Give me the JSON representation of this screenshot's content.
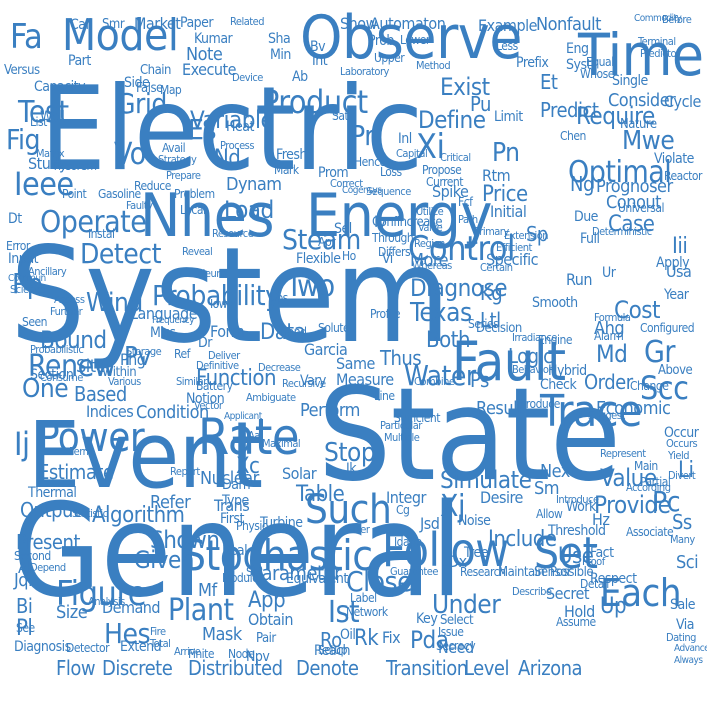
{
  "word_cloud": {
    "palette": {
      "word_color": "#3a7fc1",
      "background": "#ffffff"
    },
    "words": {
      "system": "System",
      "general": "General",
      "electric": "Electric",
      "state": "State",
      "event": "Event",
      "nhes": "Nhes",
      "energy": "Energy",
      "time": "Time",
      "observe": "Observe",
      "model": "Model",
      "fault": "Fault",
      "stochastic": "Stochastic",
      "follow": "Follow",
      "rate": "Rate",
      "power": "Power",
      "control": "Control",
      "trace": "Trace",
      "set": "Set",
      "each": "Each",
      "figure": "Figure",
      "product": "Product",
      "such": "Such",
      "probability": "Probability",
      "operate": "Operate",
      "detect": "Detect",
      "steam": "Steam",
      "test": "Test",
      "ieee": "Ieee",
      "algorithm": "Algorithm",
      "renew": "Renew",
      "optimal": "Optimal",
      "diagnose": "Diagnose",
      "texas": "Texas",
      "water": "Water",
      "plant": "Plant",
      "transition": "Transition",
      "level": "Level",
      "arizona": "Arizona",
      "discrete": "Discrete",
      "distributed": "Distributed",
      "denote": "Denote",
      "flow": "Flow",
      "grid": "Grid",
      "scc": "Scc",
      "simulate": "Simulate",
      "variable": "Variable",
      "require": "Require",
      "define": "Define",
      "exist": "Exist",
      "close": "Close",
      "given": "Given",
      "stop": "Stop",
      "load": "Load",
      "wind": "Wind",
      "two": "Two",
      "data": "Data",
      "function": "Function",
      "parameter": "Parameter",
      "value": "Value",
      "provide": "Provide",
      "under": "Under",
      "shown": "Shown",
      "include": "Include",
      "result": "Result",
      "economic": "Economic",
      "cost": "Cost",
      "price": "Price",
      "predict": "Predict",
      "consider": "Consider",
      "output": "Output",
      "estimate": "Estimate",
      "table": "Table",
      "based": "Based",
      "condition": "Condition",
      "indices": "Indices",
      "solar": "Solar",
      "turbine": "Turbine",
      "nuclear": "Nuclear",
      "logic": "Logic",
      "order": "Order",
      "perform": "Perform",
      "pdf": "Pdf",
      "hes": "Hes",
      "app": "App",
      "ltl": "Ltl",
      "bound": "Bound",
      "one": "One",
      "pp": "Pp",
      "vo": "Vo",
      "es": "Es",
      "fig": "Fig",
      "pr": "Pr",
      "xi": "Xi",
      "pn": "Pn",
      "mwe": "Mwe",
      "conout": "Conout",
      "prognoser": "Prognoser",
      "case": "Case",
      "kg": "Kg",
      "md": "Md",
      "ahg": "Ahg",
      "thus": "Thus",
      "both": "Both",
      "pc": "Pc",
      "ss": "Ss",
      "ij": "Ij",
      "xj": "Xj",
      "sm": "Sm",
      "gr": "Gr",
      "pv": "Pv",
      "phg": "Phg",
      "ng": "Ng",
      "li": "Li",
      "initial": "Initial",
      "nd": "Nd",
      "sp": "Sp",
      "ps": "Ps",
      "next": "Next",
      "note": "Note",
      "execute": "Execute",
      "kumar": "Kumar",
      "show": "Show",
      "automaton": "Automaton",
      "nonfault": "Nonfault",
      "example": "Example",
      "market": "Market",
      "call": "Call",
      "paper": "Paper",
      "smr": "Smr",
      "related": "Related",
      "fa": "Fa",
      "iii": "Iii",
      "year": "Year",
      "et": "Et",
      "rtm": "Rtm",
      "pu": "Pu",
      "heat": "Heat",
      "dynam": "Dynam",
      "spike": "Spike",
      "flexible": "Flexible",
      "sel": "Sel",
      "inl": "Inl",
      "eng": "Eng",
      "syst": "Syst",
      "prefix": "Prefix",
      "simulat": "Simulat",
      "limit": "Limit",
      "measure": "Measure",
      "same": "Same",
      "mask": "Mask",
      "obtain": "Obtain",
      "pda": "Pda",
      "fix": "Fix",
      "need": "Need",
      "reach": "Reach",
      "demand": "Demand",
      "size": "Size",
      "present": "Present",
      "study": "Study",
      "site": "Site",
      "miss": "Miss",
      "ro": "Ro",
      "rk": "Rk",
      "ist": "Ist",
      "trans": "Trans",
      "form": "Form",
      "section": "Section",
      "thermal": "Thermal",
      "refer": "Refer",
      "desire": "Desire",
      "noise": "Noise",
      "tree": "Tree",
      "pl": "Pl",
      "bi": "Bi",
      "ieeexplore": "Ieee",
      "key": "Key",
      "hold": "Hold",
      "secret": "Secret",
      "respect": "Respect",
      "cycle": "Cycle",
      "single": "Single",
      "possible": "Possible",
      "lower": "Lower",
      "upper": "Upper",
      "extend": "Extend",
      "capacity": "Capacity",
      "diagnosis": "Diagnosis",
      "detector": "Detector",
      "dx": "Dx",
      "use": "Use",
      "mf": "Mf",
      "up": "Up",
      "sci": "Sci",
      "fact": "Fact",
      "due": "Due",
      "vary": "Vary",
      "garcia": "Garcia",
      "jsd": "Jsd",
      "integr": "Integr",
      "integra": "Integra",
      "more": "More",
      "iv": "Iv",
      "dam": "Dam",
      "type": "Type",
      "first": "First",
      "plant2": "Mwe",
      "gasoline": "Gasoline",
      "point": "Point",
      "well": "Well",
      "side": "Side",
      "chain": "Chain",
      "false": "False",
      "versus": "Versus",
      "part": "Part",
      "list": "List",
      "matrix": "Matrix",
      "theorem": "Theorem",
      "error": "Error",
      "input": "Input",
      "ancillary": "Ancillary",
      "real": "Real",
      "ab": "Ab",
      "min": "Min",
      "bv": "Bv",
      "int": "Int",
      "sha": "Sha",
      "prob": "Prob",
      "fresh": "Fresh",
      "mark": "Mark",
      "loss": "Loss",
      "prom": "Prom",
      "propose": "Propose",
      "current": "Current",
      "apr": "Apr",
      "through": "Through",
      "region": "Region",
      "differs": "Differs",
      "fcf": "Fcf",
      "conflncrease": "Conflncrease",
      "run": "Run",
      "full": "Full",
      "specific": "Specific",
      "language": "Language",
      "decision": "Decision",
      "series": "Series",
      "profile": "Profile",
      "check": "Check",
      "hybrid": "Hybrid",
      "engine": "Engine",
      "alarm": "Alarm",
      "smooth": "Smooth",
      "above": "Above",
      "change": "Change",
      "occur": "Occur",
      "main": "Main",
      "divert": "Divert",
      "allow": "Allow",
      "threshold": "Threshold",
      "associate": "Associate",
      "sale": "Sale",
      "via": "Via",
      "work": "Work",
      "partial": "Partial",
      "introduce": "Introduce",
      "detail": "Detail",
      "assume": "Assume",
      "maintain": "Maintain",
      "sensor": "Sensor",
      "research": "Research",
      "network": "Network",
      "label": "Label",
      "equivalent": "Equivalent",
      "finite": "Finite",
      "node": "Node",
      "module": "Module",
      "pair": "Pair",
      "gamma": "Gamma",
      "npv": "Npv",
      "setup": "Setup",
      "issue": "Issue",
      "select": "Select",
      "secrecy": "Secrecy",
      "guarantee": "Guarantee",
      "physic": "Physic",
      "statistic": "Statistic",
      "second": "Second",
      "depend": "Depend",
      "analysis": "Analysis",
      "total": "Total",
      "arrive": "Arrive",
      "fire": "Fire",
      "filter": "Filter",
      "term": "Term",
      "report": "Report",
      "battery": "Battery",
      "notion": "Notion",
      "deliver": "Deliver",
      "definitive": "Definitive",
      "neural": "Neural",
      "decrease": "Decrease",
      "storage": "Storage",
      "probabilistic": "Probabilistic",
      "within": "Within",
      "various": "Various",
      "consume": "Consume",
      "similar": "Similar",
      "signal": "Signal",
      "local": "Local",
      "problem": "Problem",
      "correct": "Correct",
      "sequence": "Sequence",
      "wherein": "Whereas",
      "certain": "Certain",
      "efficient": "Efficient",
      "extension": "Extension",
      "primary": "Primary",
      "valve": "Valve",
      "path": "Path",
      "utilize": "Utilize",
      "hence": "Hence",
      "capital": "Capital",
      "critical": "Critical",
      "nature": "Nature",
      "violate": "Violate",
      "reactor": "Reactor",
      "chen": "Chen",
      "universal": "Universal",
      "deterministic": "Deterministic",
      "formula": "Formula",
      "configured": "Configured",
      "apply": "Apply",
      "usa": "Usa",
      "whose": "Whose",
      "equal": "Equal",
      "less": "Less",
      "commodity": "Commodity",
      "terminal": "Terminal",
      "before": "Before",
      "predictor": "Predictor",
      "method": "Method",
      "laboratory": "Laboratory",
      "device": "Device",
      "process": "Process",
      "map": "Map",
      "avail": "Avail",
      "strategy": "Strategy",
      "faulty": "Faulty",
      "idaho": "Idaho",
      "sufficient": "Sufficient",
      "produce": "Produce",
      "ambiguate": "Ambiguate",
      "maximal": "Maximal",
      "recursive": "Recursive",
      "multiple": "Multiple",
      "particular": "Particular",
      "combine": "Combine",
      "behavior": "Behavior",
      "irradiance": "Irradiance",
      "describe": "Describe",
      "proof": "Proof",
      "science": "Science",
      "commun": "Commun",
      "instal": "Instal",
      "dt": "Dt",
      "iowa": "Iowa",
      "vector": "Vector",
      "eps": "Eps",
      "hand": "Hand",
      "solute": "Solute",
      "line": "Line",
      "reveal": "Reveal",
      "cogensys": "Cogensys",
      "dr": "Dr",
      "ref": "Ref",
      "seen": "Seen",
      "further": "Further",
      "assess": "Assess",
      "frequency": "Frequency",
      "represent": "Represent",
      "according": "According",
      "suggest": "Suggest",
      "occurs": "Occurs",
      "yield": "Yield",
      "many": "Many",
      "dating": "Dating",
      "advance": "Advance",
      "always": "Always",
      "jqi": "Jqi",
      "al": "Al",
      "see": "See",
      "aa": "Aa",
      "ik": "Ik",
      "rtf": "Rtf",
      "fill": "Fill",
      "reduce": "Reduce",
      "prepare": "Prepare",
      "resource": "Resource",
      "applicant": "Applicant",
      "xc": "Xc",
      "sh": "Sh",
      "ho": "Ho",
      "hz": "Hz",
      "ur": "Ur",
      "sat": "Sat",
      "vi": "Vi",
      "oil": "Oil",
      "cg": "Cg"
    }
  }
}
